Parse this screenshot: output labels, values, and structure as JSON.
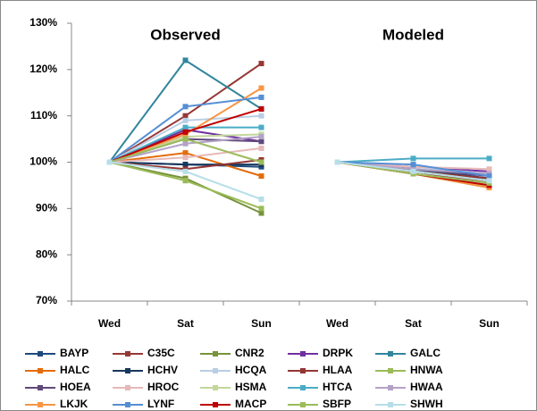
{
  "chart_data": {
    "type": "line",
    "panel_titles": [
      "Observed",
      "Modeled"
    ],
    "categories": [
      "Wed",
      "Sat",
      "Sun",
      "Wed",
      "Sat",
      "Sun"
    ],
    "ylim": [
      70,
      130
    ],
    "yticks": [
      {
        "value": 70,
        "label": "70%"
      },
      {
        "value": 80,
        "label": "80%"
      },
      {
        "value": 90,
        "label": "90%"
      },
      {
        "value": 100,
        "label": "100%"
      },
      {
        "value": 110,
        "label": "110%"
      },
      {
        "value": 120,
        "label": "120%"
      },
      {
        "value": 130,
        "label": "130%"
      }
    ],
    "grid": false,
    "series": [
      {
        "name": "BAYP",
        "color": "#1F497D",
        "values": [
          100,
          99.5,
          99,
          100,
          98.5,
          96.5
        ]
      },
      {
        "name": "C35C",
        "color": "#953735",
        "values": [
          100,
          110,
          121.3,
          100,
          98,
          95.5
        ]
      },
      {
        "name": "CNR2",
        "color": "#77933C",
        "values": [
          100,
          96.5,
          89,
          100,
          97.5,
          94.5
        ]
      },
      {
        "name": "DRPK",
        "color": "#7030A0",
        "values": [
          100,
          107,
          104.5,
          100,
          99,
          98
        ]
      },
      {
        "name": "GALC",
        "color": "#31859C",
        "values": [
          100,
          122,
          111.5,
          100,
          98.5,
          96
        ]
      },
      {
        "name": "HALC",
        "color": "#E46C0A",
        "values": [
          100,
          102,
          97,
          100,
          97.5,
          95
        ]
      },
      {
        "name": "HCHV",
        "color": "#17375E",
        "values": [
          100,
          99.5,
          99.5,
          100,
          98,
          96
        ]
      },
      {
        "name": "HCQA",
        "color": "#B9CDE5",
        "values": [
          100,
          109,
          110,
          100,
          99,
          97.5
        ]
      },
      {
        "name": "HLAA",
        "color": "#943634",
        "values": [
          100,
          98.5,
          100.5,
          100,
          98,
          96.5
        ]
      },
      {
        "name": "HNWA",
        "color": "#9BBB59",
        "values": [
          100,
          96,
          90,
          100,
          97.5,
          95
        ]
      },
      {
        "name": "HOEA",
        "color": "#604A7B",
        "values": [
          100,
          105,
          104.5,
          100,
          98.5,
          97
        ]
      },
      {
        "name": "HROC",
        "color": "#E6B9B8",
        "values": [
          100,
          101,
          103,
          100,
          99,
          98.5
        ]
      },
      {
        "name": "HSMA",
        "color": "#C3D69B",
        "values": [
          100,
          105.5,
          106,
          100,
          98,
          96
        ]
      },
      {
        "name": "HTCA",
        "color": "#4BACC6",
        "values": [
          100,
          107.5,
          107.5,
          100,
          100.8,
          100.8
        ]
      },
      {
        "name": "HWAA",
        "color": "#B3A2C7",
        "values": [
          100,
          104,
          105.5,
          100,
          98.5,
          97.5
        ]
      },
      {
        "name": "LKJK",
        "color": "#F79646",
        "values": [
          100,
          106,
          116,
          100,
          97.5,
          94.5
        ]
      },
      {
        "name": "LYNF",
        "color": "#558ED5",
        "values": [
          100,
          112,
          114,
          100,
          99.5,
          97
        ]
      },
      {
        "name": "MACP",
        "color": "#C00000",
        "values": [
          100,
          106.5,
          111.5,
          100,
          97.5,
          95
        ]
      },
      {
        "name": "SBFP",
        "color": "#9BBB59",
        "values": [
          100,
          105,
          100,
          100,
          97.5,
          95.5
        ]
      },
      {
        "name": "SHWH",
        "color": "#B7DEE8",
        "values": [
          100,
          98,
          92,
          100,
          98,
          96
        ]
      }
    ]
  }
}
